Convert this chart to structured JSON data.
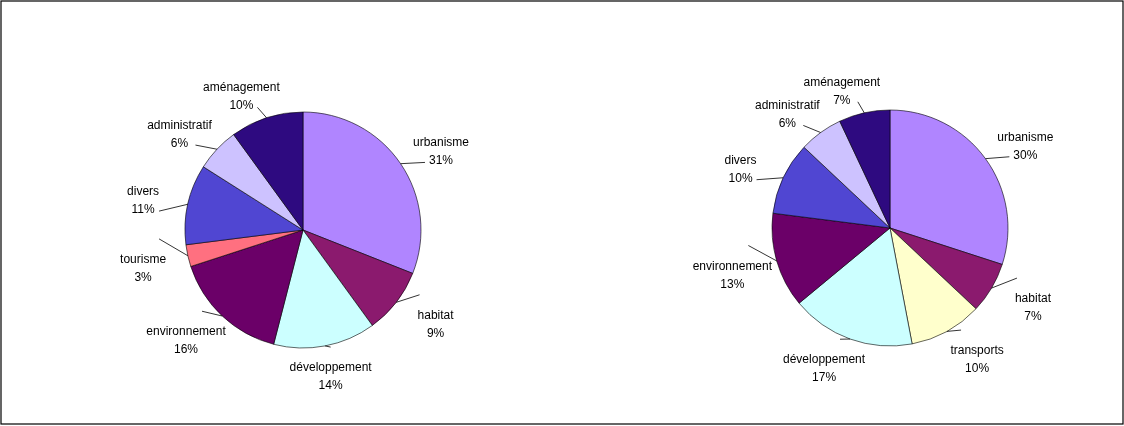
{
  "chart_data": [
    {
      "type": "pie",
      "categories": [
        "urbanisme",
        "habitat",
        "développement",
        "environnement",
        "tourisme",
        "divers",
        "administratif",
        "aménagement"
      ],
      "values": [
        31,
        9,
        14,
        16,
        3,
        11,
        6,
        10
      ],
      "colors": [
        "#b085ff",
        "#8b1a6e",
        "#ccffff",
        "#6b0068",
        "#ff7080",
        "#5046d2",
        "#cdc2ff",
        "#2e0a80"
      ],
      "value_labels": [
        "31%",
        "9%",
        "14%",
        "16%",
        "3%",
        "11%",
        "6%",
        "10%"
      ]
    },
    {
      "type": "pie",
      "categories": [
        "urbanisme",
        "habitat",
        "transports",
        "développement",
        "environnement",
        "divers",
        "administratif",
        "aménagement"
      ],
      "values": [
        30,
        7,
        10,
        17,
        13,
        10,
        6,
        7
      ],
      "colors": [
        "#b085ff",
        "#8b1a6e",
        "#ffffcc",
        "#ccffff",
        "#6b0068",
        "#5046d2",
        "#cdc2ff",
        "#2e0a80"
      ],
      "value_labels": [
        "30%",
        "7%",
        "10%",
        "17%",
        "13%",
        "10%",
        "6%",
        "7%"
      ]
    }
  ]
}
